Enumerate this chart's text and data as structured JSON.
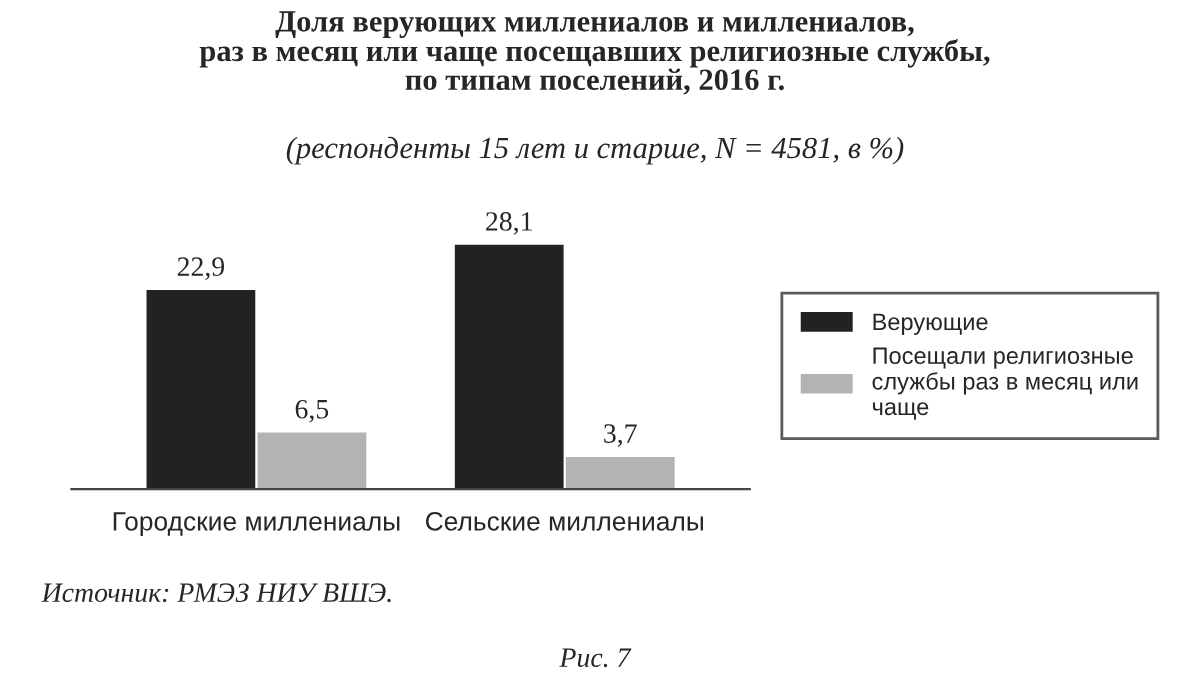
{
  "chart_data": {
    "type": "bar",
    "title": "Доля верующих миллениалов и миллениалов,\nраз в месяц или чаще посещавших религиозные службы,\nпо типам поселений, 2016 г.",
    "subtitle": "(респонденты 15 лет и старше, N = 4581, в %)",
    "categories": [
      "Городские миллениалы",
      "Сельские миллениалы"
    ],
    "series": [
      {
        "name": "Верующие",
        "color": "#222222",
        "values": [
          22.9,
          28.1
        ],
        "value_labels": [
          "22,9",
          "28,1"
        ]
      },
      {
        "name": "Посещали религиозные службы раз в месяц или чаще",
        "color": "#b3b3b3",
        "values": [
          6.5,
          3.7
        ],
        "value_labels": [
          "6,5",
          "3,7"
        ]
      }
    ],
    "legend": "right",
    "grid": false,
    "annotations": [
      "Источник: РМЭЗ НИУ ВШЭ.",
      "Рис. 7"
    ]
  }
}
